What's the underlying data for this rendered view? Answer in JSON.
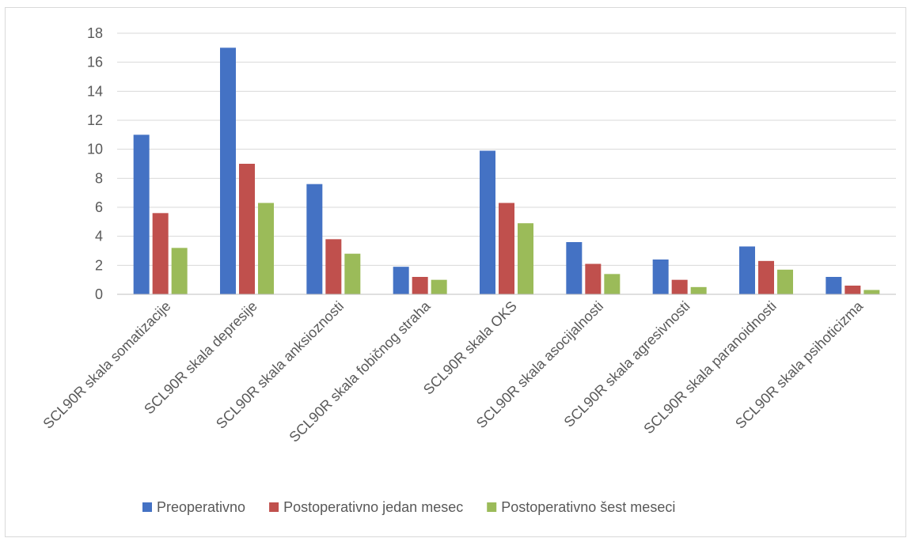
{
  "chart_data": {
    "type": "bar",
    "title": "",
    "xlabel": "",
    "ylabel": "",
    "ylim": [
      0,
      18
    ],
    "yticks": [
      0,
      2,
      4,
      6,
      8,
      10,
      12,
      14,
      16,
      18
    ],
    "grid": true,
    "legend_position": "bottom",
    "categories": [
      "SCL90R skala somatizacije",
      "SCL90R skala depresije",
      "SCL90R skala anksioznosti",
      "SCL90R skala fobičnog straha",
      "SCL90R skala OKS",
      "SCL90R skala asocijalnosti",
      "SCL90R skala agresivnosti",
      "SCL90R skala paranoidnosti",
      "SCL90R skala psihoticizma"
    ],
    "series": [
      {
        "name": "Preoperativno",
        "color": "#4472c4",
        "values": [
          11.0,
          17.0,
          7.6,
          1.9,
          9.9,
          3.6,
          2.4,
          3.3,
          1.2
        ]
      },
      {
        "name": "Postoperativno jedan mesec",
        "color": "#c0504d",
        "values": [
          5.6,
          9.0,
          3.8,
          1.2,
          6.3,
          2.1,
          1.0,
          2.3,
          0.6
        ]
      },
      {
        "name": "Postoperativno šest meseci",
        "color": "#9bbb59",
        "values": [
          3.2,
          6.3,
          2.8,
          1.0,
          4.9,
          1.4,
          0.5,
          1.7,
          0.3
        ]
      }
    ]
  }
}
